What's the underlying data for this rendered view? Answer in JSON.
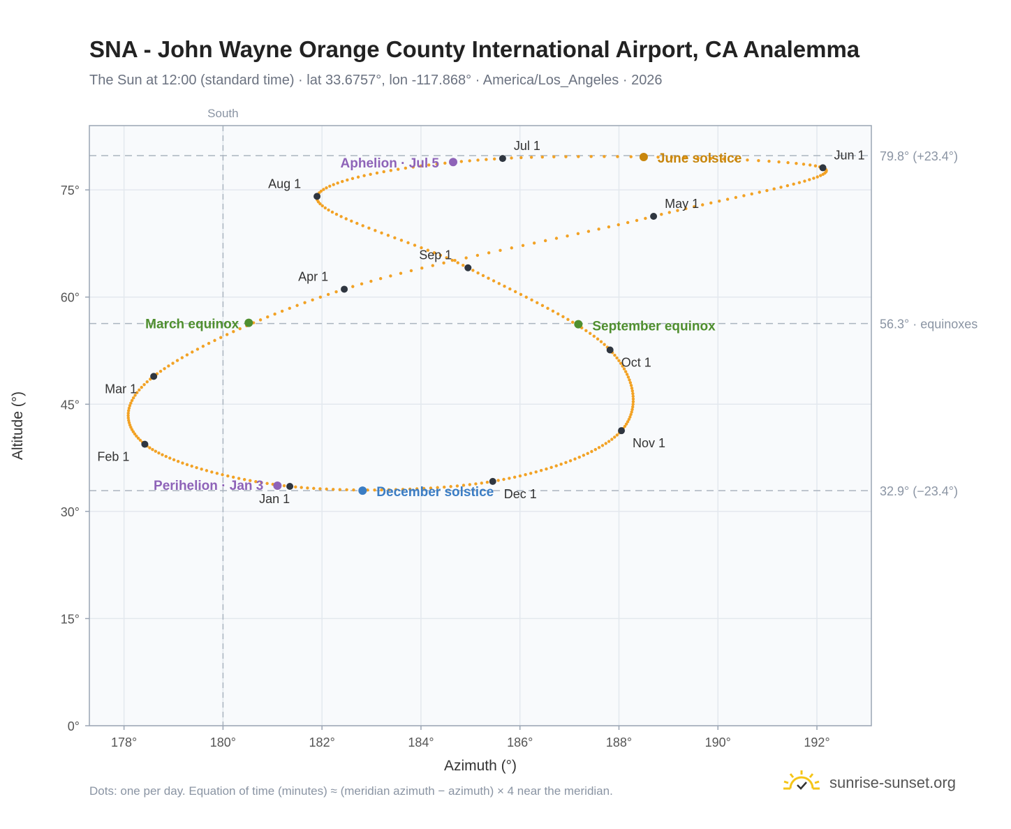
{
  "header": {
    "title": "SNA - John Wayne Orange County International Airport, CA Analemma",
    "subtitle": "The Sun at 12:00 (standard time) · lat 33.6757°, lon -117.868° · America/Los_Angeles · 2026"
  },
  "footer": {
    "note": "Dots: one per day. Equation of time (minutes) ≈ (meridian azimuth − azimuth) × 4 near the meridian.",
    "brand": "sunrise-sunset.org"
  },
  "colors": {
    "path": "#f2a225",
    "month_marker": "#2f3640",
    "solstice_june": "#c8860d",
    "solstice_december": "#3b7dc4",
    "equinox": "#4f8f2f",
    "apsis": "#8e63b8",
    "reference_line": "#aab4bf",
    "plot_bg": "#f8fafc",
    "grid": "#e3e8ee",
    "frame": "#9aa5b4"
  },
  "chart_data": {
    "type": "scatter",
    "xlabel": "Azimuth (°)",
    "ylabel": "Altitude (°)",
    "xlim": [
      177.3,
      193.1
    ],
    "ylim": [
      0,
      84
    ],
    "xticks": [
      178,
      180,
      182,
      184,
      186,
      188,
      190,
      192
    ],
    "xtick_labels": [
      "178°",
      "180°",
      "182°",
      "184°",
      "186°",
      "188°",
      "190°",
      "192°"
    ],
    "yticks": [
      0,
      15,
      30,
      45,
      60,
      75
    ],
    "ytick_labels": [
      "0°",
      "15°",
      "30°",
      "45°",
      "60°",
      "75°"
    ],
    "grid": true,
    "south_line": {
      "x": 180,
      "label": "South"
    },
    "reference_lines": [
      {
        "y": 79.8,
        "label": "79.8° (+23.4°)"
      },
      {
        "y": 56.3,
        "label": "56.3° · equinoxes"
      },
      {
        "y": 32.9,
        "label": "32.9° (−23.4°)"
      }
    ],
    "month_markers": [
      {
        "label": "Jan 1",
        "x": 181.35,
        "y": 33.5
      },
      {
        "label": "Feb 1",
        "x": 178.42,
        "y": 39.4
      },
      {
        "label": "Mar 1",
        "x": 178.6,
        "y": 48.9
      },
      {
        "label": "Apr 1",
        "x": 182.45,
        "y": 61.1
      },
      {
        "label": "May 1",
        "x": 188.7,
        "y": 71.3
      },
      {
        "label": "Jun 1",
        "x": 192.12,
        "y": 78.1
      },
      {
        "label": "Jul 1",
        "x": 185.65,
        "y": 79.4
      },
      {
        "label": "Aug 1",
        "x": 181.9,
        "y": 74.1
      },
      {
        "label": "Sep 1",
        "x": 184.95,
        "y": 64.1
      },
      {
        "label": "Oct 1",
        "x": 187.82,
        "y": 52.6
      },
      {
        "label": "Nov 1",
        "x": 188.05,
        "y": 41.3
      },
      {
        "label": "Dec 1",
        "x": 185.45,
        "y": 34.2
      }
    ],
    "events": [
      {
        "label": "March equinox",
        "x": 180.52,
        "y": 56.4,
        "kind": "equinox"
      },
      {
        "label": "June solstice",
        "x": 188.5,
        "y": 79.6,
        "kind": "solstice_june"
      },
      {
        "label": "September equinox",
        "x": 187.18,
        "y": 56.2,
        "kind": "equinox"
      },
      {
        "label": "December solstice",
        "x": 182.82,
        "y": 32.9,
        "kind": "solstice_december"
      },
      {
        "label": "Perihelion · Jan 3",
        "x": 181.1,
        "y": 33.6,
        "kind": "apsis"
      },
      {
        "label": "Aphelion · Jul 5",
        "x": 184.65,
        "y": 78.9,
        "kind": "apsis"
      }
    ]
  }
}
